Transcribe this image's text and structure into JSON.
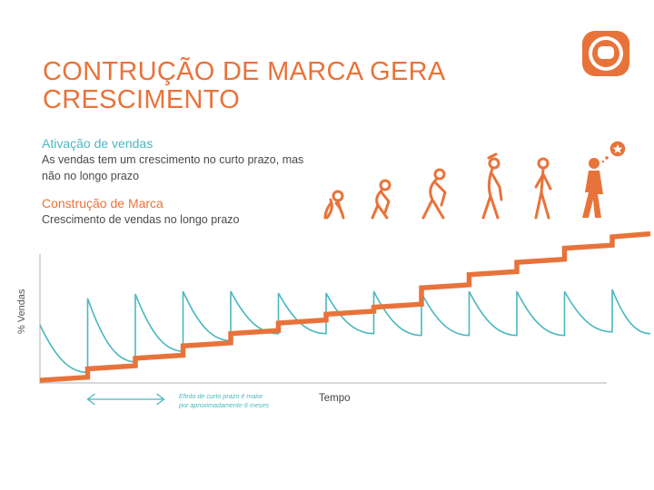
{
  "title": [
    "CONTRUÇÃO DE MARCA GERA",
    "CRESCIMENTO"
  ],
  "ativacao": {
    "heading": "Ativação de vendas",
    "text": [
      "As vendas tem um crescimento no curto prazo, mas",
      "não no longo prazo"
    ]
  },
  "construcao": {
    "heading": "Construção de Marca",
    "text": "Crescimento de vendas no longo prazo"
  },
  "note": [
    "Efeito de curto prazo é maior",
    "por aproximadamente 6 meses"
  ],
  "colors": {
    "orange": "#e8733a",
    "teal": "#4ab8bd",
    "axis": "#cccccc"
  },
  "icons": [
    "tv-logo-icon",
    "evolution-stages-icon",
    "star-icon",
    "double-arrow-icon"
  ],
  "chart_data": {
    "type": "line",
    "xlabel": "Tempo",
    "ylabel": "% Vendas",
    "grid": false,
    "series": [
      {
        "style": "step",
        "color": "#e8733a",
        "steps": [
          {
            "x0": 0,
            "x1": 1,
            "y": 0.3
          },
          {
            "x0": 1,
            "x1": 2,
            "y": 1.6
          },
          {
            "x0": 2,
            "x1": 3,
            "y": 2.8
          },
          {
            "x0": 3,
            "x1": 4,
            "y": 4.2
          },
          {
            "x0": 4,
            "x1": 5,
            "y": 5.6
          },
          {
            "x0": 5,
            "x1": 6,
            "y": 6.8
          },
          {
            "x0": 6,
            "x1": 7,
            "y": 7.8
          },
          {
            "x0": 7,
            "x1": 8,
            "y": 8.6
          },
          {
            "x0": 8,
            "x1": 9,
            "y": 10.8
          },
          {
            "x0": 9,
            "x1": 10,
            "y": 12.3
          },
          {
            "x0": 10,
            "x1": 11,
            "y": 13.7
          },
          {
            "x0": 11,
            "x1": 12,
            "y": 15.3
          },
          {
            "x0": 12,
            "x1": 12.8,
            "y": 16.6
          }
        ]
      },
      {
        "style": "sawtooth",
        "color": "#4ab8bd",
        "start": {
          "x": 0,
          "y": 6.6
        },
        "teeth": [
          {
            "x0": 1,
            "low": 1.2,
            "peak": 9.6
          },
          {
            "x0": 2,
            "low": 2.4,
            "peak": 10.1
          },
          {
            "x0": 3,
            "low": 3.6,
            "peak": 10.4
          },
          {
            "x0": 4,
            "low": 4.8,
            "peak": 10.4
          },
          {
            "x0": 5,
            "low": 5.6,
            "peak": 10.2
          },
          {
            "x0": 6,
            "low": 5.6,
            "peak": 10.2
          },
          {
            "x0": 7,
            "low": 5.6,
            "peak": 10.4
          },
          {
            "x0": 8,
            "low": 5.4,
            "peak": 10.2
          },
          {
            "x0": 9,
            "low": 5.4,
            "peak": 10.4
          },
          {
            "x0": 10,
            "low": 5.4,
            "peak": 10.4
          },
          {
            "x0": 11,
            "low": 5.4,
            "peak": 10.4
          },
          {
            "x0": 12,
            "low": 5.8,
            "peak": 10.6
          }
        ],
        "end": {
          "x": 12.8,
          "y": 5.6
        }
      }
    ],
    "arrow": {
      "x0": 1,
      "x1": 2.6
    }
  }
}
